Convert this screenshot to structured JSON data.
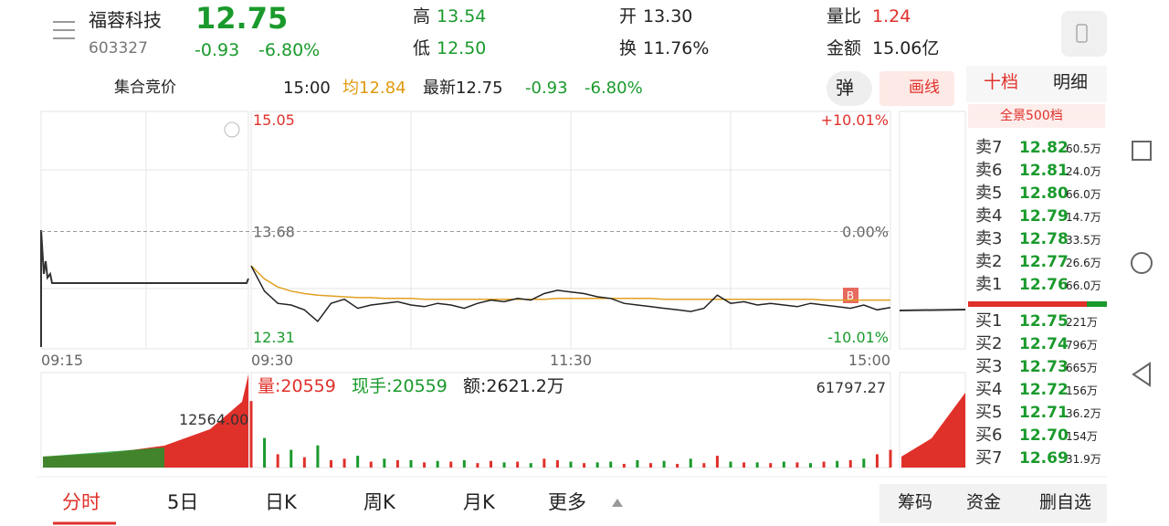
{
  "header": {
    "name": "福蓉科技",
    "code": "603327",
    "price": "12.75",
    "change": "-0.93",
    "change_pct": "-6.80%"
  },
  "stats": [
    {
      "label": "高",
      "value": "13.54"
    },
    {
      "label": "开",
      "value": "13.30"
    },
    {
      "label": "量比",
      "value": "1.24"
    },
    {
      "label": "低",
      "value": "12.50"
    },
    {
      "label": "换",
      "value": "11.76%"
    },
    {
      "label": "金额",
      "value": "15.06亿"
    }
  ],
  "bar": {
    "mode": "集合竞价",
    "time": "15:00",
    "avg": "均12.84",
    "latest": "最新12.75",
    "change": "-0.93",
    "change_pct": "-6.80%",
    "popup_button": "弹",
    "draw_button": "画线"
  },
  "book_tabs": [
    "十档",
    "明细"
  ],
  "book_link": "全景500档",
  "order_book": [
    [
      "卖7",
      "12.82",
      "60.5万"
    ],
    [
      "卖6",
      "12.81",
      "24.0万"
    ],
    [
      "卖5",
      "12.80",
      "66.0万"
    ],
    [
      "卖4",
      "12.79",
      "14.7万"
    ],
    [
      "卖3",
      "12.78",
      "33.5万"
    ],
    [
      "卖2",
      "12.77",
      "26.6万"
    ],
    [
      "卖1",
      "12.76",
      "66.0万"
    ],
    [
      "买1",
      "12.75",
      "221万"
    ],
    [
      "买2",
      "12.74",
      "796万"
    ],
    [
      "买3",
      "12.73",
      "665万"
    ],
    [
      "买4",
      "12.72",
      "156万"
    ],
    [
      "买5",
      "12.71",
      "36.2万"
    ],
    [
      "买6",
      "12.70",
      "154万"
    ],
    [
      "买7",
      "12.69",
      "31.9万"
    ]
  ],
  "chart": {
    "ylim": [
      12.31,
      15.05
    ],
    "yticks": [
      15.05,
      13.68,
      12.31
    ],
    "pct_labels": [
      "+10.01%",
      "0.00%",
      "-10.01%"
    ],
    "time_labels": [
      "09:15",
      "09:30",
      "11:30",
      "15:00"
    ],
    "marker": "B",
    "xlim": [
      0,
      240
    ],
    "minutes": [
      0,
      5,
      10,
      15,
      20,
      25,
      30,
      35,
      40,
      45,
      50,
      55,
      60,
      65,
      70,
      75,
      80,
      85,
      90,
      95,
      100,
      105,
      110,
      115,
      120,
      125,
      130,
      135,
      140,
      145,
      150,
      155,
      160,
      165,
      170,
      175,
      180,
      185,
      190,
      195,
      200,
      205,
      210,
      215,
      220,
      225,
      230,
      235,
      240
    ],
    "price": [
      13.26,
      12.95,
      12.8,
      12.78,
      12.72,
      12.58,
      12.8,
      12.85,
      12.74,
      12.78,
      12.8,
      12.82,
      12.78,
      12.76,
      12.8,
      12.78,
      12.74,
      12.8,
      12.84,
      12.82,
      12.86,
      12.84,
      12.92,
      12.96,
      12.94,
      12.92,
      12.88,
      12.86,
      12.8,
      12.78,
      12.76,
      12.74,
      12.72,
      12.7,
      12.74,
      12.9,
      12.8,
      12.82,
      12.78,
      12.8,
      12.78,
      12.76,
      12.8,
      12.78,
      12.76,
      12.74,
      12.78,
      12.72,
      12.75
    ],
    "avg": [
      13.26,
      13.1,
      13.0,
      12.95,
      12.92,
      12.9,
      12.89,
      12.88,
      12.87,
      12.87,
      12.86,
      12.86,
      12.86,
      12.85,
      12.85,
      12.85,
      12.85,
      12.85,
      12.85,
      12.85,
      12.85,
      12.85,
      12.85,
      12.86,
      12.86,
      12.86,
      12.86,
      12.86,
      12.86,
      12.86,
      12.86,
      12.85,
      12.85,
      12.85,
      12.85,
      12.85,
      12.85,
      12.85,
      12.85,
      12.85,
      12.85,
      12.85,
      12.85,
      12.84,
      12.84,
      12.84,
      12.84,
      12.84,
      12.84
    ],
    "volume": {
      "ylim": [
        0,
        61797.27
      ],
      "yticks": [
        61797.27
      ],
      "auction_label": "12564.00",
      "vol_text": "量:20559",
      "hand_text": "现手:20559",
      "amount_text": "额:2621.2万",
      "up": [
        45000,
        null,
        9000,
        null,
        7000,
        null,
        5000,
        6000,
        null,
        4000,
        null,
        5000,
        null,
        3500,
        null,
        4000,
        null,
        3000,
        4500,
        null,
        4000,
        null,
        6000,
        5000,
        null,
        3000,
        null,
        null,
        2500,
        null,
        3000,
        null,
        2500,
        null,
        3000,
        8000,
        null,
        3500,
        null,
        3000,
        null,
        3500,
        null,
        4000,
        null,
        5000,
        null,
        9000,
        12000
      ],
      "down": [
        null,
        20000,
        null,
        12000,
        null,
        15000,
        null,
        null,
        8000,
        null,
        6000,
        null,
        5000,
        null,
        4500,
        null,
        5000,
        null,
        null,
        3500,
        null,
        3000,
        null,
        null,
        4000,
        null,
        3500,
        4000,
        null,
        5000,
        null,
        4500,
        null,
        6000,
        null,
        null,
        4000,
        null,
        3500,
        null,
        4000,
        null,
        3000,
        null,
        4500,
        null,
        6000,
        null,
        null
      ]
    }
  },
  "tabs": [
    "分时",
    "5日",
    "日K",
    "周K",
    "月K",
    "更多"
  ],
  "buttons": [
    "筹码",
    "资金",
    "删自选"
  ]
}
